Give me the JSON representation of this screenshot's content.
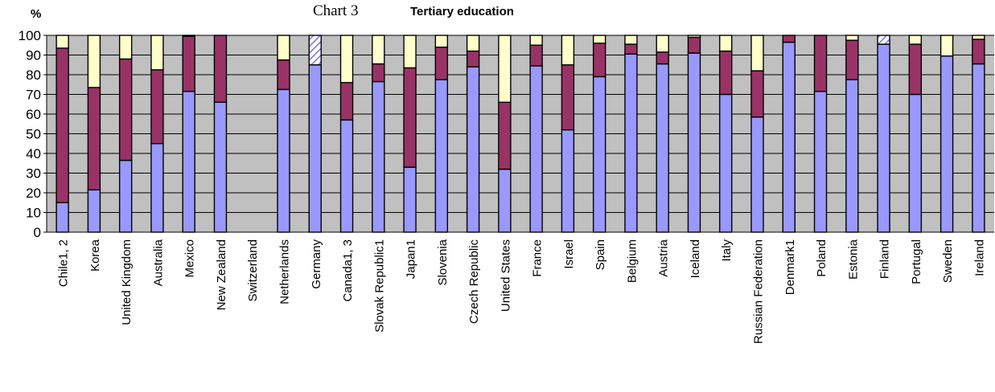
{
  "chart_data": {
    "type": "bar",
    "stacked": true,
    "chart_label": "Chart 3",
    "title": "Tertiary education",
    "ylabel": "%",
    "ylim": [
      0,
      100
    ],
    "yticks": [
      0,
      10,
      20,
      30,
      40,
      50,
      60,
      70,
      80,
      90,
      100
    ],
    "grid": "horizontal",
    "legend": "none",
    "categories": [
      "Chile1, 2",
      "Korea",
      "United Kingdom",
      "Australia",
      "Mexico",
      "New Zealand",
      "Switzerland",
      "Netherlands",
      "Germany",
      "Canada1, 3",
      "Slovak Republic1",
      "Japan1",
      "Slovenia",
      "Czech Republic",
      "United States",
      "France",
      "Israel",
      "Spain",
      "Belgium",
      "Austria",
      "Iceland",
      "Italy",
      "Russian Federation",
      "Denmark1",
      "Poland",
      "Estonia",
      "Finland",
      "Portugal",
      "Sweden",
      "Ireland"
    ],
    "series": [
      {
        "color": "#9999ff",
        "values": [
          15,
          21.5,
          36.5,
          45,
          71.5,
          66,
          null,
          72.5,
          85,
          57,
          76.5,
          33,
          77.5,
          84,
          32,
          84.5,
          52,
          79,
          90.5,
          85.5,
          91,
          70,
          58.5,
          96.5,
          71.5,
          77.5,
          95.5,
          70,
          89.5,
          85.5
        ]
      },
      {
        "color": "#993366",
        "values": [
          78.5,
          52,
          51.5,
          37.5,
          28,
          34,
          null,
          15,
          0,
          19,
          9,
          50.5,
          16.5,
          8,
          34,
          10.5,
          33,
          17,
          5,
          6,
          8,
          22,
          23.5,
          3.5,
          28.5,
          20,
          0,
          25.5,
          0,
          12.5
        ]
      },
      {
        "color": "#ffffcc",
        "values": [
          6.5,
          26.5,
          12,
          17.5,
          0.5,
          0,
          null,
          12.5,
          0,
          24,
          14.5,
          16.5,
          6,
          8,
          34,
          5,
          15,
          4,
          4.5,
          8.5,
          1,
          8,
          18,
          0,
          0,
          2.5,
          0,
          4.5,
          10.5,
          2
        ]
      },
      {
        "color": "#9999ff",
        "pattern": "hatched",
        "values": [
          0,
          0,
          0,
          0,
          0,
          0,
          null,
          0,
          15,
          0,
          0,
          0,
          0,
          0,
          0,
          0,
          0,
          0,
          0,
          0,
          0,
          0,
          0,
          0,
          0,
          0,
          4.5,
          0,
          0,
          0
        ]
      }
    ]
  }
}
